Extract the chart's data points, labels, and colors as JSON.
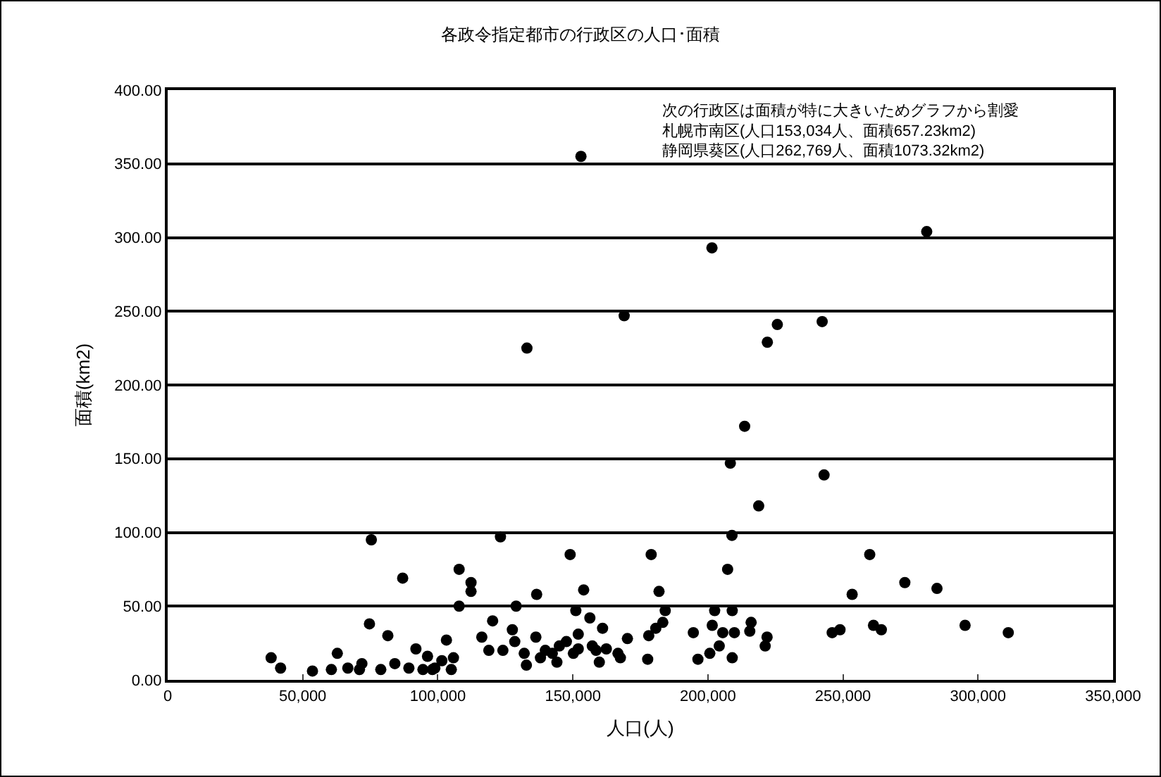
{
  "chart_data": {
    "type": "scatter",
    "title": "各政令指定都市の行政区の人口･面積",
    "xlabel": "人口(人)",
    "ylabel": "面積(km2)",
    "annotations": [
      "次の行政区は面積が特に大きいためグラフから割愛",
      "札幌市南区(人口153,034人、面積657.23km2)",
      "静岡県葵区(人口262,769人、面積1073.32km2)"
    ],
    "x": [
      153000,
      281000,
      201500,
      169000,
      133000,
      225700,
      242300,
      222000,
      213600,
      208300,
      243000,
      218800,
      75400,
      87000,
      107900,
      112300,
      112300,
      107900,
      120300,
      74700,
      81500,
      116300,
      118900,
      38300,
      41800,
      53600,
      62800,
      60600,
      66700,
      71900,
      71000,
      78900,
      84100,
      89300,
      91900,
      96200,
      94500,
      98900,
      103200,
      101500,
      105800,
      105000,
      98000,
      123200,
      149000,
      179000,
      208900,
      207300,
      136600,
      154000,
      181900,
      129000,
      151100,
      156300,
      161000,
      184200,
      183300,
      180700,
      178100,
      202500,
      209000,
      201600,
      216000,
      215500,
      221900,
      221200,
      194600,
      205500,
      209800,
      204200,
      200700,
      196300,
      209000,
      177700,
      170200,
      166700,
      162400,
      159800,
      157200,
      152000,
      152000,
      147600,
      145000,
      142400,
      144100,
      138000,
      136300,
      132800,
      128500,
      127600,
      132000,
      124100,
      139800,
      150200,
      167600,
      158600,
      259900,
      253400,
      272900,
      284800,
      246000,
      248900,
      261300,
      264200,
      295200,
      311200
    ],
    "values": [
      355,
      304,
      293,
      247,
      225,
      241,
      243,
      229,
      172,
      147,
      139,
      118,
      95,
      69,
      75,
      66,
      60,
      50,
      40,
      38,
      30,
      29,
      20,
      15,
      8,
      6,
      18,
      7,
      8,
      11,
      7,
      7,
      11,
      8,
      21,
      16,
      7,
      8,
      27,
      13,
      15,
      7,
      7,
      97,
      85,
      85,
      98,
      75,
      58,
      61,
      60,
      50,
      47,
      42,
      35,
      47,
      39,
      35,
      30,
      47,
      47,
      37,
      39,
      33,
      29,
      23,
      32,
      32,
      32,
      23,
      18,
      14,
      15,
      14,
      28,
      18,
      21,
      12,
      23,
      31,
      21,
      26,
      23,
      18,
      12,
      15,
      29,
      10,
      26,
      34,
      18,
      20,
      20,
      18,
      15,
      20,
      85,
      58,
      66,
      62,
      32,
      34,
      37,
      34,
      37,
      32
    ],
    "color": "#000000",
    "marker": "circle",
    "grid": "y",
    "xlim": [
      0,
      350000
    ],
    "xticks": [
      0,
      {
        "value": 50000,
        "label": "50,000"
      },
      {
        "value": 100000,
        "label": "100,000"
      },
      {
        "value": 150000,
        "label": "150,000"
      },
      {
        "value": 200000,
        "label": "200,000"
      },
      {
        "value": 250000,
        "label": "250,000"
      },
      {
        "value": 300000,
        "label": "300,000"
      },
      {
        "value": 350000,
        "label": "350,000"
      }
    ],
    "ylim": [
      0,
      400
    ],
    "yticks": [
      {
        "value": 0,
        "label": "0.00"
      },
      {
        "value": 50,
        "label": "50.00"
      },
      {
        "value": 100,
        "label": "100.00"
      },
      {
        "value": 150,
        "label": "150.00"
      },
      {
        "value": 200,
        "label": "200.00"
      },
      {
        "value": 250,
        "label": "250.00"
      },
      {
        "value": 300,
        "label": "300.00"
      },
      {
        "value": 350,
        "label": "350.00"
      },
      {
        "value": 400,
        "label": "400.00"
      }
    ]
  }
}
